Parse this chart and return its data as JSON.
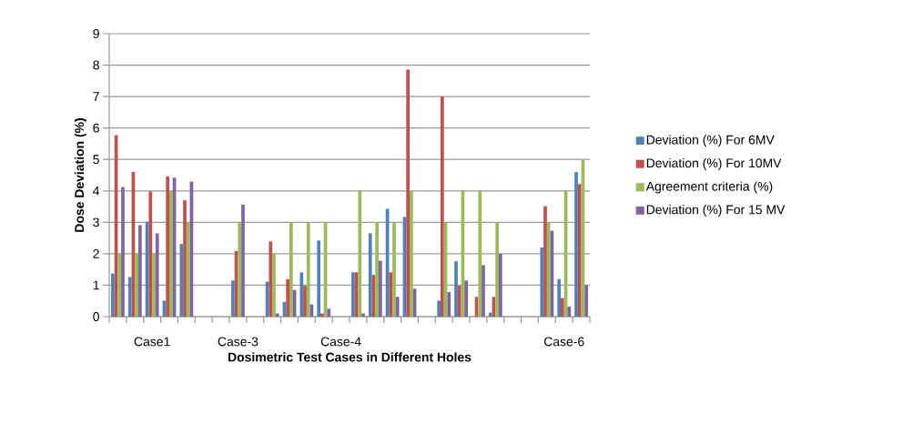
{
  "chart_data": {
    "type": "bar",
    "xlabel": "Dosimetric Test Cases in Different Holes",
    "ylabel": "Dose Deviation (%)",
    "categories": [
      null,
      null,
      "Case1",
      null,
      null,
      null,
      null,
      "Case-3",
      null,
      null,
      null,
      null,
      null,
      "Case-4",
      null,
      null,
      null,
      null,
      null,
      null,
      null,
      null,
      null,
      null,
      null,
      null,
      "Case-6",
      null
    ],
    "series": [
      {
        "name": "Deviation (%) For 6MV",
        "color": "#4f81bd",
        "values": [
          1.37,
          1.26,
          3.02,
          0.51,
          2.31,
          null,
          null,
          1.15,
          null,
          1.11,
          0.47,
          1.41,
          2.42,
          null,
          1.41,
          2.65,
          3.43,
          3.17,
          null,
          0.51,
          1.76,
          null,
          0.13,
          null,
          null,
          2.2,
          1.19,
          4.6
        ]
      },
      {
        "name": "Deviation (%) For 10MV",
        "color": "#c0504d",
        "values": [
          5.77,
          4.6,
          3.99,
          4.46,
          3.7,
          null,
          null,
          2.09,
          null,
          2.39,
          1.19,
          0.98,
          0.1,
          null,
          1.41,
          1.33,
          1.41,
          7.86,
          null,
          7.0,
          0.98,
          0.63,
          0.63,
          null,
          null,
          3.51,
          0.59,
          4.22
        ]
      },
      {
        "name": "Agreement criteria (%)",
        "color": "#9bbb59",
        "values": [
          2,
          2,
          2,
          4,
          3,
          null,
          null,
          3,
          null,
          2,
          3,
          3,
          3,
          null,
          4,
          3,
          3,
          4,
          null,
          3,
          4,
          4,
          3,
          null,
          null,
          3,
          4,
          5
        ]
      },
      {
        "name": "Deviation (%) For 15 MV",
        "color": "#8064a2",
        "values": [
          4.12,
          2.91,
          2.65,
          4.42,
          4.3,
          null,
          null,
          3.56,
          null,
          0.1,
          0.85,
          0.39,
          0.25,
          null,
          0.1,
          1.78,
          0.63,
          0.89,
          null,
          0.78,
          1.15,
          1.64,
          2.0,
          null,
          null,
          2.73,
          0.32,
          1.0
        ]
      }
    ],
    "ylim": [
      0,
      9
    ],
    "yticks": [
      0,
      1,
      2,
      3,
      4,
      5,
      6,
      7,
      8,
      9
    ],
    "grid": "y",
    "legend": "right"
  }
}
